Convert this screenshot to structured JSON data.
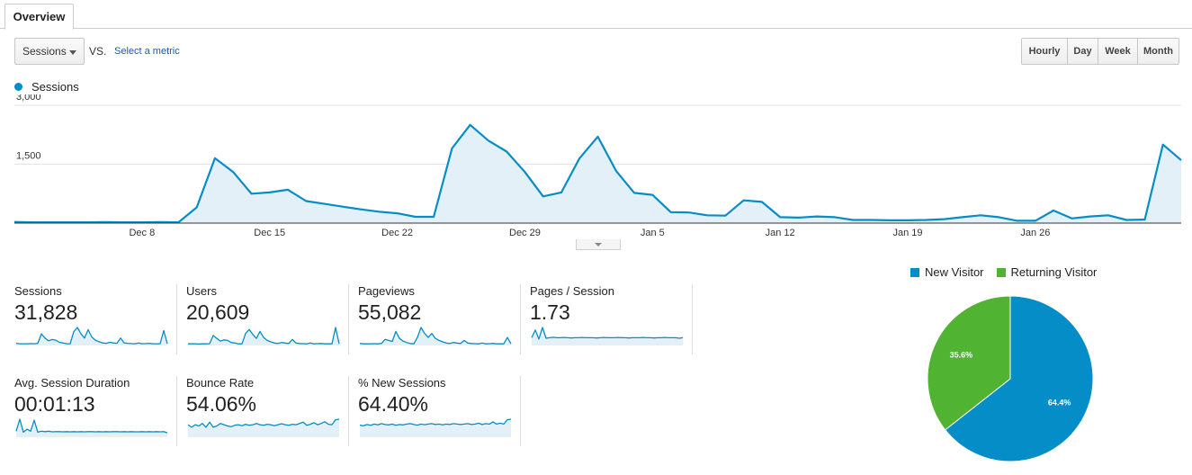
{
  "tabs": {
    "overview": "Overview"
  },
  "toolbar": {
    "metric": "Sessions",
    "vs": "VS.",
    "select_metric": "Select a metric",
    "granularity": [
      {
        "label": "Hourly",
        "active": false
      },
      {
        "label": "Day",
        "active": true
      },
      {
        "label": "Week",
        "active": false
      },
      {
        "label": "Month",
        "active": false
      }
    ]
  },
  "colors": {
    "series": "#058dc7",
    "fill": "#e4f0f8",
    "returning": "#50b432"
  },
  "chart_data": [
    {
      "type": "area",
      "series": [
        {
          "name": "Sessions",
          "values": [
            30,
            20,
            20,
            20,
            20,
            25,
            20,
            20,
            25,
            20,
            400,
            1650,
            1300,
            750,
            780,
            850,
            560,
            490,
            420,
            350,
            290,
            250,
            160,
            160,
            1900,
            2500,
            2100,
            1820,
            1300,
            680,
            780,
            1650,
            2200,
            1330,
            770,
            720,
            280,
            270,
            200,
            190,
            580,
            540,
            150,
            140,
            170,
            150,
            80,
            80,
            70,
            70,
            80,
            100,
            150,
            200,
            150,
            60,
            60,
            320,
            120,
            170,
            200,
            80,
            90,
            2000,
            1600
          ],
          "first_date": "Dec 1"
        }
      ],
      "ylim": [
        0,
        3000
      ],
      "yticks": [
        "3,000",
        "1,500"
      ],
      "xticks": [
        "Dec 8",
        "Dec 15",
        "Dec 22",
        "Dec 29",
        "Jan 5",
        "Jan 12",
        "Jan 19",
        "Jan 26"
      ],
      "grid": true
    },
    {
      "type": "pie",
      "series": [
        {
          "name": "New Visitor",
          "value": 64.4,
          "label": "64.4%"
        },
        {
          "name": "Returning Visitor",
          "value": 35.6,
          "label": "35.6%"
        }
      ]
    }
  ],
  "main_legend": "Sessions",
  "metrics": [
    {
      "label": "Sessions",
      "value": "31,828",
      "spark": [
        10,
        8,
        8,
        8,
        9,
        8,
        10,
        55,
        35,
        22,
        28,
        25,
        15,
        12,
        8,
        8,
        65,
        85,
        55,
        35,
        75,
        40,
        25,
        18,
        12,
        10,
        15,
        12,
        10,
        35,
        12,
        10,
        9,
        8,
        12,
        8,
        9,
        10,
        8,
        8,
        8,
        70,
        8
      ]
    },
    {
      "label": "Users",
      "value": "20,609",
      "spark": [
        8,
        8,
        8,
        7,
        8,
        8,
        9,
        50,
        35,
        22,
        28,
        25,
        15,
        12,
        8,
        8,
        60,
        80,
        55,
        35,
        70,
        40,
        25,
        18,
        12,
        10,
        15,
        12,
        10,
        30,
        12,
        10,
        9,
        8,
        12,
        8,
        9,
        10,
        8,
        8,
        8,
        90,
        8
      ]
    },
    {
      "label": "Pageviews",
      "value": "55,082",
      "spark": [
        10,
        8,
        8,
        8,
        9,
        8,
        10,
        30,
        25,
        20,
        70,
        35,
        22,
        15,
        10,
        8,
        40,
        90,
        60,
        40,
        60,
        35,
        25,
        18,
        12,
        10,
        15,
        12,
        10,
        25,
        12,
        10,
        9,
        8,
        12,
        8,
        9,
        10,
        8,
        8,
        8,
        40,
        8
      ]
    },
    {
      "label": "Pages / Session",
      "value": "1.73",
      "spark": [
        30,
        60,
        25,
        70,
        28,
        30,
        32,
        30,
        30,
        31,
        30,
        29,
        30,
        30,
        31,
        30,
        30,
        30,
        29,
        30,
        31,
        30,
        30,
        30,
        31,
        30,
        30,
        29,
        30,
        30,
        30,
        31,
        30,
        30,
        29,
        30,
        30,
        31,
        30,
        30,
        30,
        28,
        30
      ]
    },
    {
      "label": "Avg. Session Duration",
      "value": "00:01:13",
      "spark": [
        30,
        90,
        25,
        40,
        30,
        85,
        25,
        30,
        28,
        30,
        27,
        28,
        28,
        27,
        28,
        27,
        28,
        27,
        28,
        27,
        28,
        28,
        27,
        28,
        27,
        28,
        27,
        28,
        28,
        27,
        28,
        27,
        28,
        27,
        27,
        28,
        27,
        28,
        27,
        28,
        27,
        28,
        22
      ]
    },
    {
      "label": "Bounce Rate",
      "value": "54.06%",
      "spark": [
        50,
        40,
        50,
        45,
        55,
        40,
        60,
        40,
        45,
        55,
        50,
        45,
        42,
        48,
        50,
        46,
        52,
        48,
        50,
        55,
        50,
        48,
        52,
        50,
        46,
        50,
        54,
        50,
        48,
        52,
        50,
        55,
        60,
        48,
        52,
        58,
        50,
        55,
        62,
        52,
        50,
        70,
        72
      ]
    },
    {
      "label": "% New Sessions",
      "value": "64.40%",
      "spark": [
        55,
        52,
        58,
        54,
        60,
        56,
        62,
        58,
        56,
        60,
        54,
        58,
        56,
        60,
        62,
        58,
        55,
        60,
        57,
        60,
        62,
        58,
        60,
        56,
        60,
        58,
        62,
        60,
        58,
        60,
        62,
        58,
        60,
        64,
        58,
        62,
        60,
        70,
        60,
        64,
        60,
        80,
        82
      ]
    }
  ]
}
